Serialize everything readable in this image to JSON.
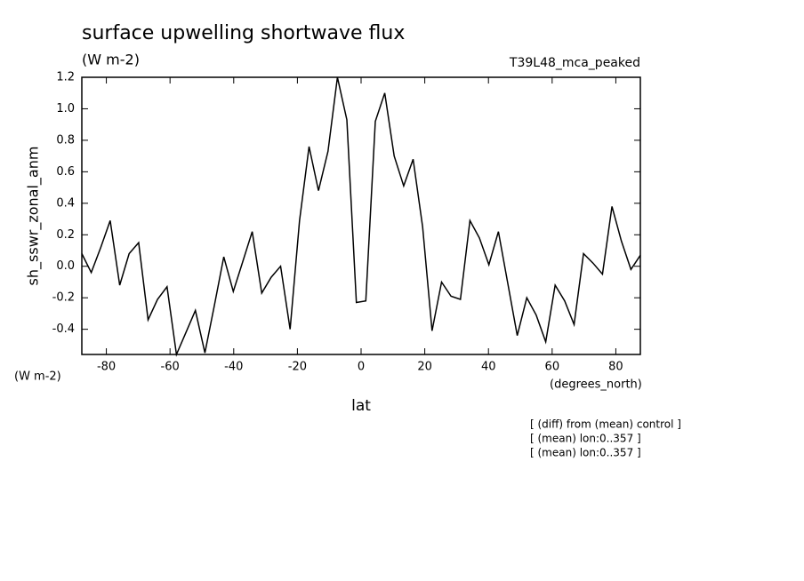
{
  "chart_data": {
    "type": "line",
    "title": "surface upwelling shortwave flux",
    "subtitle": "(W m-2)",
    "annotation": "T39L48_mca_peaked",
    "y_label": "sh_sswr_zonal_anm",
    "y_units": "(W m-2)",
    "x_units": "(degrees_north)",
    "x_label": "lat",
    "notes": [
      "[ (diff) from (mean) control ]",
      "[ (mean) lon:0..357 ]",
      "[ (mean) lon:0..357 ]"
    ],
    "x": [
      -87.7,
      -84.73,
      -81.75,
      -78.78,
      -75.81,
      -72.83,
      -69.86,
      -66.89,
      -63.92,
      -60.94,
      -57.97,
      -55.0,
      -52.02,
      -49.05,
      -46.08,
      -43.11,
      -40.13,
      -37.16,
      -34.19,
      -31.21,
      -28.24,
      -25.27,
      -22.3,
      -19.32,
      -16.35,
      -13.38,
      -10.4,
      -7.43,
      -4.46,
      -1.49,
      1.49,
      4.46,
      7.43,
      10.4,
      13.38,
      16.35,
      19.32,
      22.3,
      25.27,
      28.24,
      31.21,
      34.19,
      37.16,
      40.13,
      43.11,
      46.08,
      49.05,
      52.02,
      55.0,
      57.97,
      60.94,
      63.92,
      66.89,
      69.86,
      72.83,
      75.81,
      78.78,
      81.75,
      84.73,
      87.7
    ],
    "series": [
      {
        "name": "sh_sswr_zonal_anm",
        "color": "#000000",
        "values": [
          0.08,
          -0.04,
          0.12,
          0.29,
          -0.12,
          0.08,
          0.15,
          -0.34,
          -0.21,
          -0.13,
          -0.56,
          -0.42,
          -0.28,
          -0.55,
          -0.25,
          0.06,
          -0.16,
          0.03,
          0.22,
          -0.17,
          -0.07,
          0.0,
          -0.4,
          0.29,
          0.76,
          0.48,
          0.73,
          1.2,
          0.93,
          -0.23,
          -0.22,
          0.92,
          1.1,
          0.7,
          0.51,
          0.68,
          0.25,
          -0.41,
          -0.1,
          -0.19,
          -0.21,
          0.29,
          0.18,
          0.01,
          0.22,
          -0.11,
          -0.44,
          -0.2,
          -0.31,
          -0.48,
          -0.12,
          -0.22,
          -0.37,
          0.08,
          0.02,
          -0.05,
          0.38,
          0.16,
          -0.02,
          0.07
        ]
      }
    ],
    "xlim": [
      -87.7,
      87.7
    ],
    "xticks": [
      -80,
      -60,
      -40,
      -20,
      0,
      20,
      40,
      60,
      80
    ],
    "ylim": [
      -0.56,
      1.2
    ],
    "yticks": [
      -0.4,
      -0.2,
      {
        "value": 0,
        "label": "0.0"
      },
      0.2,
      0.4,
      0.6,
      0.8,
      {
        "value": 1,
        "label": "1.0"
      },
      1.2
    ],
    "grid": false
  }
}
